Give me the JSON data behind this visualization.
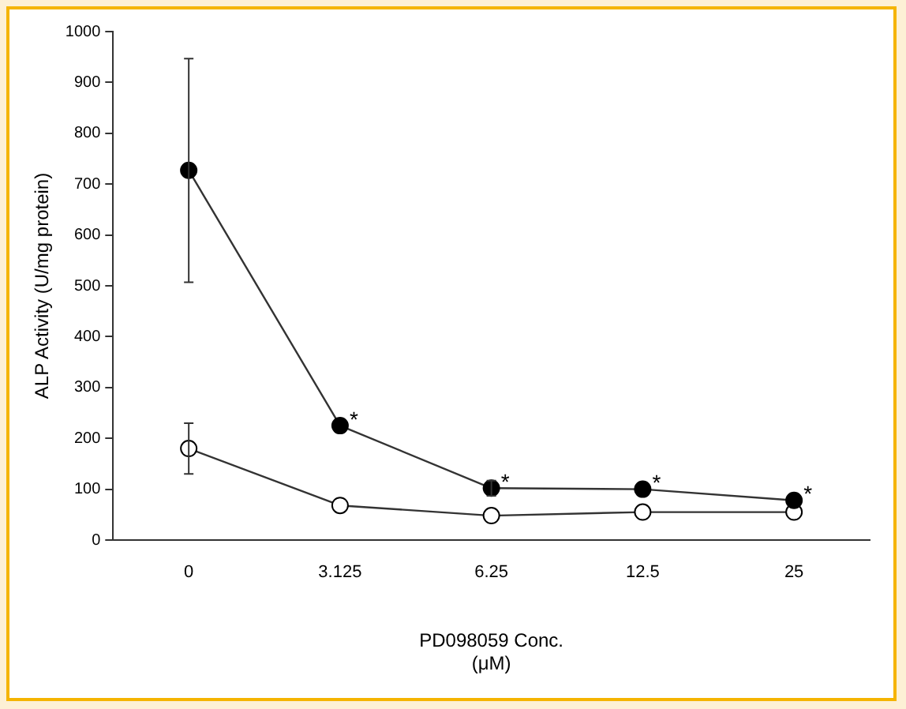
{
  "chart_data": {
    "type": "line",
    "xlabel": "PD098059 Conc.\n(μM)",
    "ylabel": "ALP Activity (U/mg protein)",
    "categories": [
      "0",
      "3.125",
      "6.25",
      "12.5",
      "25"
    ],
    "series": [
      {
        "color": "#000000",
        "values": [
          727,
          225,
          102,
          100,
          78
        ],
        "errors": [
          [
            507,
            947
          ],
          null,
          [
            87,
            117
          ],
          null,
          null
        ]
      },
      {
        "color": "#ffffff",
        "values": [
          180,
          68,
          48,
          55,
          55
        ],
        "errors": [
          [
            130,
            230
          ],
          null,
          null,
          null,
          null
        ]
      }
    ],
    "ylim": [
      0,
      1000
    ],
    "yticks": [
      0,
      100,
      200,
      300,
      400,
      500,
      600,
      700,
      800,
      900,
      1000
    ],
    "marker": "circle",
    "line_style": "solid",
    "grid": false,
    "legend": false,
    "annotations": [
      {
        "text": "*",
        "x": "3.125",
        "y": 225
      },
      {
        "text": "*",
        "x": "6.25",
        "y": 102
      },
      {
        "text": "*",
        "x": "12.5",
        "y": 100
      },
      {
        "text": "*",
        "x": "25",
        "y": 78
      }
    ]
  }
}
